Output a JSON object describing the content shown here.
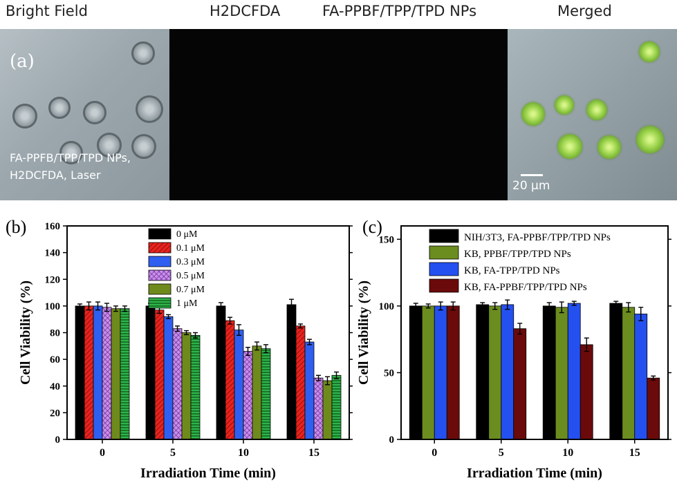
{
  "panel_a": {
    "label": "(a)",
    "headers": [
      "Bright Field",
      "H2DCFDA",
      "FA-PPBF/TPP/TPD NPs",
      "Merged"
    ],
    "overlay_lines": [
      "FA-PPFB/TPP/TPD NPs,",
      "H2DCFDA, Laser"
    ],
    "scale_bar": "20 µm"
  },
  "chart_data": [
    {
      "panel_label": "(b)",
      "type": "bar",
      "categories": [
        "0",
        "5",
        "10",
        "15"
      ],
      "xlabel": "Irradiation Time (min)",
      "ylabel": "Cell Viability (%)",
      "ylim": [
        0,
        160
      ],
      "yticks": [
        "0",
        "20",
        "40",
        "60",
        "80",
        "100",
        "120",
        "140",
        "160"
      ],
      "legend_position": "top-center",
      "series": [
        {
          "name": "0 μM",
          "color": "#000000",
          "pattern": "solid",
          "values": [
            100,
            100,
            100,
            101
          ],
          "errors": [
            1.5,
            2,
            2.5,
            4
          ]
        },
        {
          "name": "0.1 μM",
          "color": "#e8231e",
          "pattern": "diagonal",
          "values": [
            100,
            97,
            89,
            85
          ],
          "errors": [
            3,
            2.5,
            2.5,
            1.5
          ]
        },
        {
          "name": "0.3 μM",
          "color": "#2f5ff0",
          "pattern": "solid",
          "values": [
            100,
            92,
            82,
            73
          ],
          "errors": [
            3,
            1.5,
            4,
            2
          ]
        },
        {
          "name": "0.5 μM",
          "color": "#a24fcf",
          "pattern": "crosshatch",
          "values": [
            99,
            83,
            66,
            46
          ],
          "errors": [
            3,
            2,
            3,
            2
          ]
        },
        {
          "name": "0.7 μM",
          "color": "#6f8a1c",
          "pattern": "solid",
          "values": [
            98,
            80,
            70,
            44
          ],
          "errors": [
            2,
            1.5,
            3,
            3
          ]
        },
        {
          "name": "1 μM",
          "color": "#1f9a3a",
          "pattern": "horizontal",
          "values": [
            98,
            78,
            68,
            48
          ],
          "errors": [
            2,
            2,
            3,
            2.5
          ]
        }
      ]
    },
    {
      "panel_label": "(c)",
      "type": "bar",
      "categories": [
        "0",
        "5",
        "10",
        "15"
      ],
      "xlabel": "Irradiation Time (min)",
      "ylabel": "Cell Viability (%)",
      "ylim": [
        0,
        160
      ],
      "yticks": [
        "0",
        "50",
        "100",
        "150"
      ],
      "legend_position": "top-center",
      "series": [
        {
          "name": "NIH/3T3, FA-PPBF/TPP/TPD NPs",
          "color": "#000000",
          "pattern": "solid",
          "values": [
            100,
            101,
            100,
            102
          ],
          "errors": [
            2,
            1.5,
            2.5,
            1.5
          ]
        },
        {
          "name": "KB, PPBF/TPP/TPD NPs",
          "color": "#6b8c1e",
          "pattern": "solid",
          "values": [
            100,
            100,
            99,
            99
          ],
          "errors": [
            1.5,
            2.5,
            4,
            3.5
          ]
        },
        {
          "name": "KB, FA-TPP/TPD NPs",
          "color": "#2450ef",
          "pattern": "solid",
          "values": [
            100,
            101,
            102,
            94
          ],
          "errors": [
            3,
            3.5,
            1.5,
            5
          ]
        },
        {
          "name": "KB, FA-PPBF/TPP/TPD NPs",
          "color": "#6b0a0a",
          "pattern": "solid",
          "values": [
            100,
            83,
            71,
            46
          ],
          "errors": [
            3,
            4,
            5,
            1.5
          ]
        }
      ]
    }
  ]
}
